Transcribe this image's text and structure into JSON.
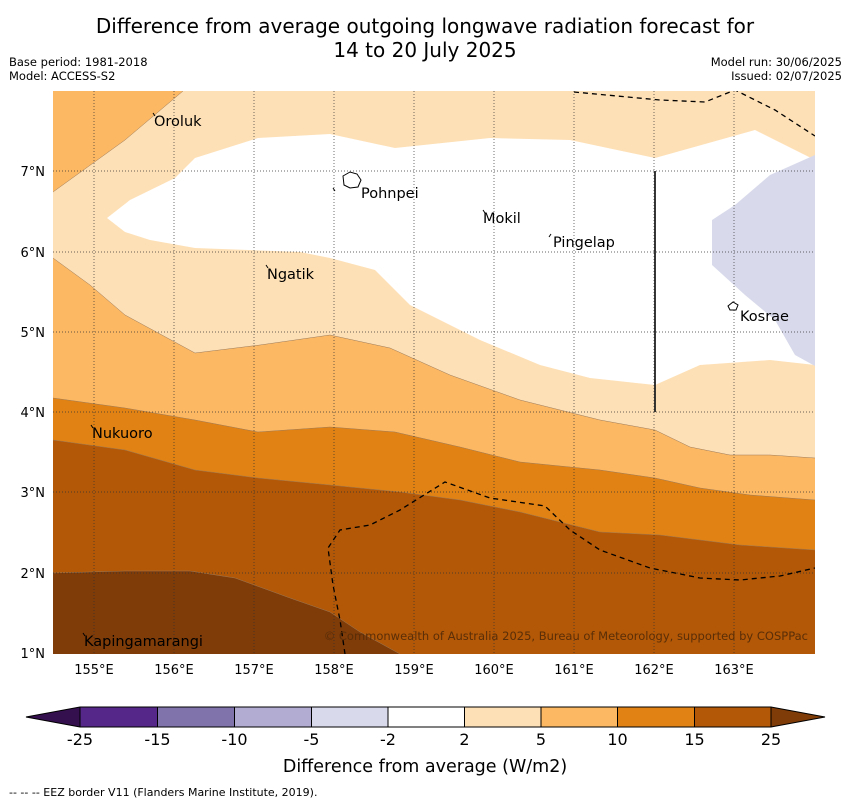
{
  "title": {
    "line1": "Difference from average outgoing longwave radiation forecast for",
    "line2": "14 to 20 July 2025"
  },
  "meta": {
    "base_period": "Base period: 1981-2018",
    "model": "Model: ACCESS-S2",
    "model_run": "Model run: 30/06/2025",
    "issued": "Issued: 02/07/2025"
  },
  "map": {
    "lon_range": [
      154.5,
      164.0
    ],
    "lat_range": [
      1.0,
      8.0
    ],
    "lon_ticks": [
      "155°E",
      "156°E",
      "157°E",
      "158°E",
      "159°E",
      "160°E",
      "161°E",
      "162°E",
      "163°E"
    ],
    "lat_ticks": [
      "1°N",
      "2°N",
      "3°N",
      "4°N",
      "5°N",
      "6°N",
      "7°N"
    ],
    "places": [
      "Oroluk",
      "Pohnpei",
      "Mokil",
      "Pingelap",
      "Ngatik",
      "Kosrae",
      "Nukuoro",
      "Kapingamarangi"
    ],
    "copyright": "© Commonwealth of Australia 2025, Bureau of Meteorology, supported by COSPPac"
  },
  "colorbar": {
    "ticks": [
      "-25",
      "-15",
      "-10",
      "-5",
      "-2",
      "2",
      "5",
      "10",
      "15",
      "25"
    ],
    "label": "Difference from average (W/m2)",
    "colors": {
      "lt_minus25": "#35104f",
      "m25_m15": "#542788",
      "m15_m10": "#8073ac",
      "m10_m5": "#b2abd2",
      "m5_m2": "#d8daeb",
      "m2_2": "#ffffff",
      "2_5": "#fee0b6",
      "5_10": "#fdb863",
      "10_15": "#e08214",
      "15_25": "#b35806",
      "gt_25": "#7f3b08"
    }
  },
  "footer": "--  --  -- EEZ border V11 (Flanders Marine Institute, 2019)."
}
